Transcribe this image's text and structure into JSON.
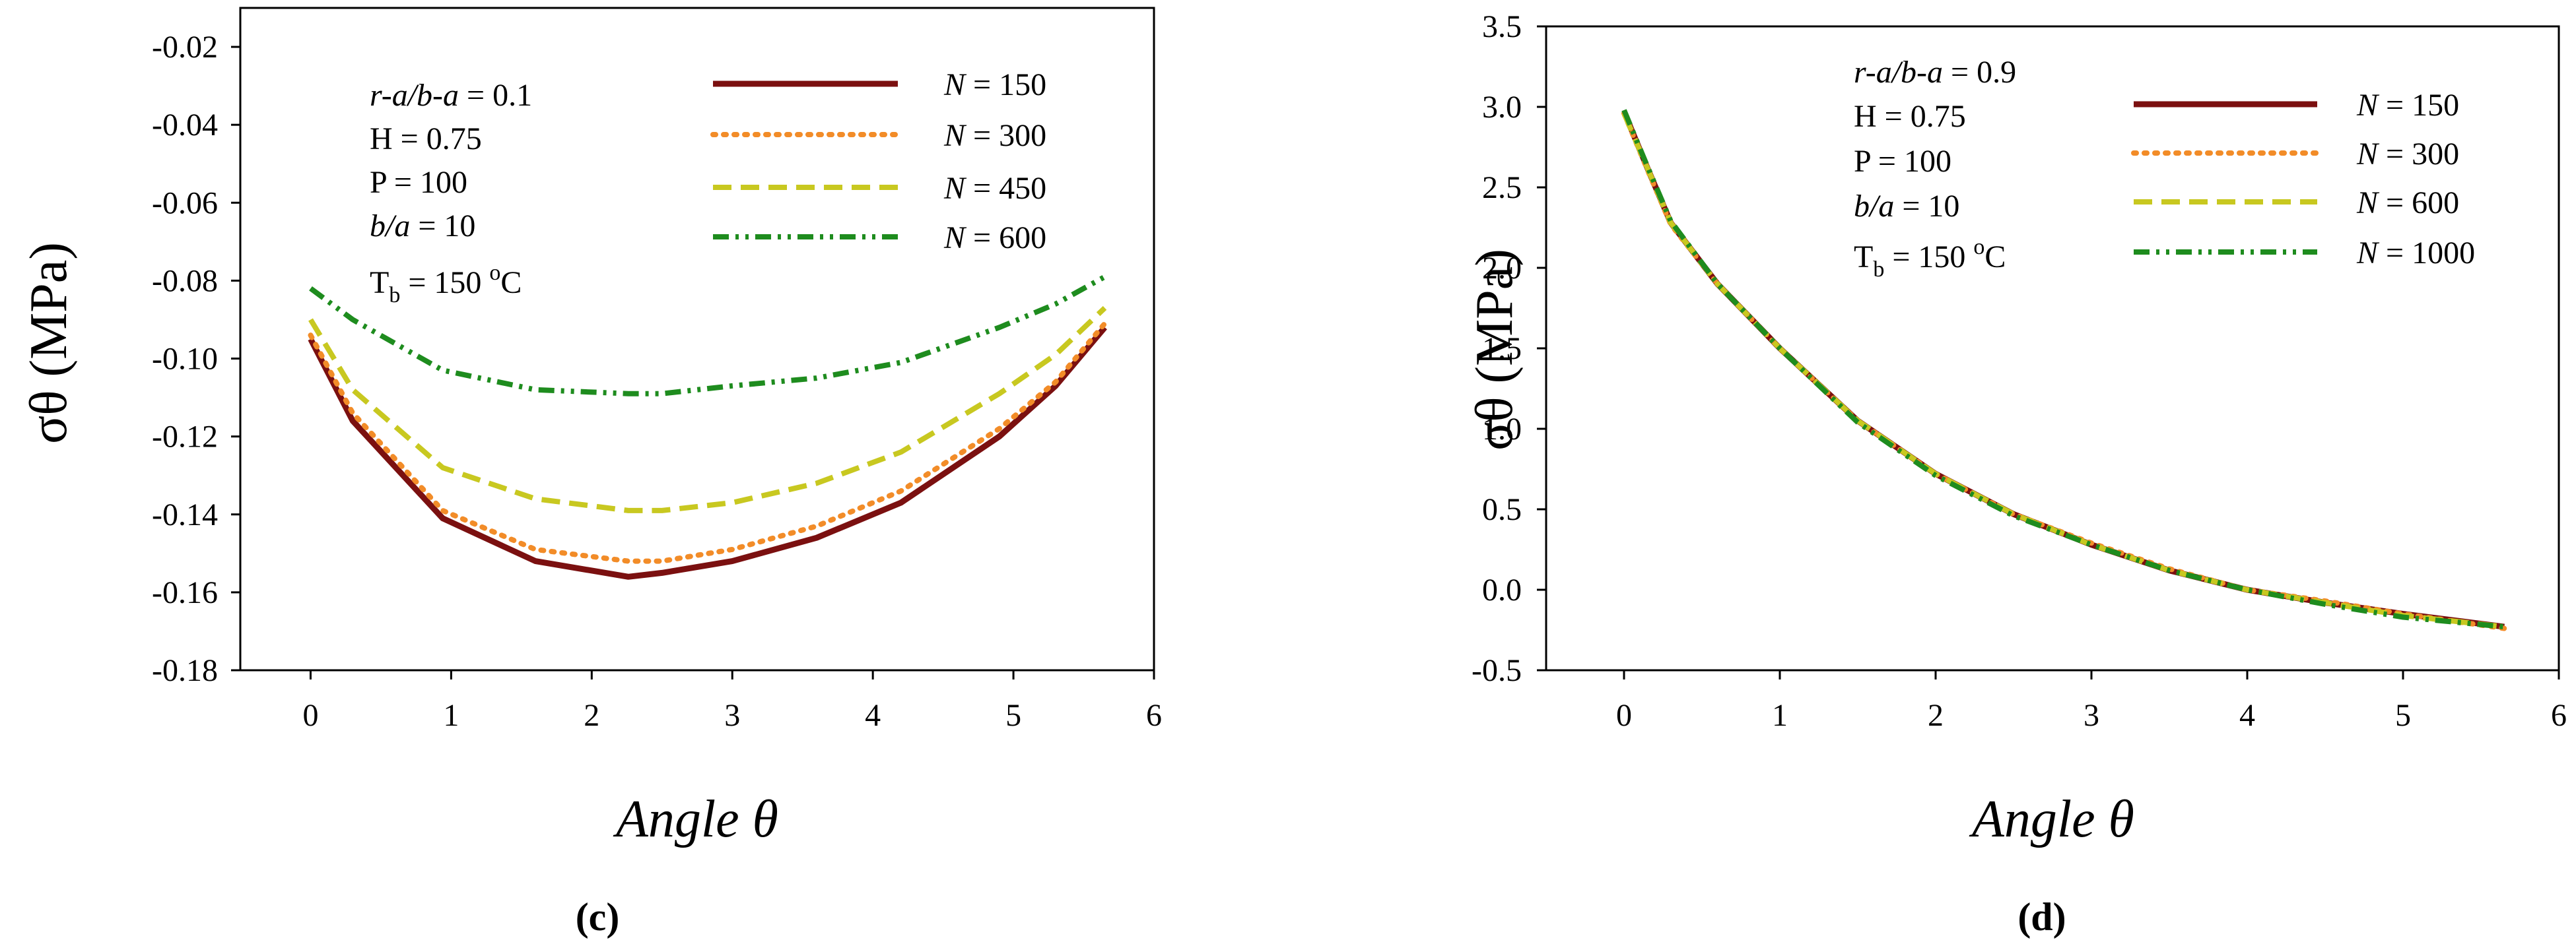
{
  "chart_data": [
    {
      "panel": "c",
      "type": "line",
      "caption": "(c)",
      "xlabel": "Angle θ",
      "ylabel": "σθ (MPa)",
      "xlim": [
        -0.5,
        6
      ],
      "ylim": [
        -0.18,
        -0.01
      ],
      "x_ticks": [
        "0",
        "1",
        "2",
        "3",
        "4",
        "5",
        "6"
      ],
      "x_tick_values": [
        0,
        1,
        2,
        3,
        4,
        5,
        6
      ],
      "y_ticks": [
        "-0.02",
        "-0.04",
        "-0.06",
        "-0.08",
        "-0.10",
        "-0.12",
        "-0.14",
        "-0.16",
        "-0.18"
      ],
      "y_tick_values": [
        -0.02,
        -0.04,
        -0.06,
        -0.08,
        -0.1,
        -0.12,
        -0.14,
        -0.16,
        -0.18
      ],
      "annotations": {
        "ratio_label": "r-a/b-a",
        "ratio_value": " = 0.1",
        "h": "H = 0.75",
        "p": "P = 100",
        "ba_label": "b/a",
        "ba_value": " = 10",
        "tb_main": "T",
        "tb_sub": "b",
        "tb_value": " = 150 ",
        "tb_degree": "o",
        "tb_unit": "C"
      },
      "series": [
        {
          "name": "N = 150",
          "n_label": "N",
          "n_value": " = 150",
          "color": "#7B1010",
          "style": "solid",
          "x": [
            0,
            0.3,
            0.94,
            1.6,
            2.26,
            2.5,
            3.0,
            3.6,
            4.2,
            4.9,
            5.3,
            5.65
          ],
          "values": [
            -0.095,
            -0.116,
            -0.141,
            -0.152,
            -0.156,
            -0.155,
            -0.152,
            -0.146,
            -0.137,
            -0.12,
            -0.107,
            -0.092
          ]
        },
        {
          "name": "N = 300",
          "n_label": "N",
          "n_value": " = 300",
          "color": "#F28C28",
          "style": "dotted",
          "x": [
            0,
            0.3,
            0.94,
            1.6,
            2.26,
            2.5,
            3.0,
            3.6,
            4.2,
            4.9,
            5.3,
            5.65
          ],
          "values": [
            -0.094,
            -0.114,
            -0.139,
            -0.149,
            -0.152,
            -0.152,
            -0.149,
            -0.143,
            -0.134,
            -0.118,
            -0.106,
            -0.091
          ]
        },
        {
          "name": "N = 450",
          "n_label": "N",
          "n_value": " = 450",
          "color": "#C8C820",
          "style": "dashed",
          "x": [
            0,
            0.3,
            0.94,
            1.6,
            2.26,
            2.5,
            3.0,
            3.6,
            4.2,
            4.9,
            5.3,
            5.65
          ],
          "values": [
            -0.09,
            -0.108,
            -0.128,
            -0.136,
            -0.139,
            -0.139,
            -0.137,
            -0.132,
            -0.124,
            -0.109,
            -0.099,
            -0.087
          ]
        },
        {
          "name": "N = 600",
          "n_label": "N",
          "n_value": " = 600",
          "color": "#1E8C1E",
          "style": "dashdotdot",
          "x": [
            0,
            0.3,
            0.94,
            1.6,
            2.26,
            2.5,
            3.0,
            3.6,
            4.2,
            4.9,
            5.3,
            5.65
          ],
          "values": [
            -0.082,
            -0.09,
            -0.103,
            -0.108,
            -0.109,
            -0.109,
            -0.107,
            -0.105,
            -0.101,
            -0.092,
            -0.086,
            -0.079
          ]
        }
      ]
    },
    {
      "panel": "d",
      "type": "line",
      "caption": "(d)",
      "xlabel": "Angle θ",
      "ylabel": "σθ (MPa)",
      "xlim": [
        -0.5,
        6
      ],
      "ylim": [
        -0.5,
        3.5
      ],
      "x_ticks": [
        "0",
        "1",
        "2",
        "3",
        "4",
        "5",
        "6"
      ],
      "x_tick_values": [
        0,
        1,
        2,
        3,
        4,
        5,
        6
      ],
      "y_ticks": [
        "3.5",
        "3.0",
        "2.5",
        "2.0",
        "1.5",
        "1.0",
        "0.5",
        "0.0",
        "-0.5"
      ],
      "y_tick_values": [
        3.5,
        3.0,
        2.5,
        2.0,
        1.5,
        1.0,
        0.5,
        0.0,
        -0.5
      ],
      "annotations": {
        "ratio_label": "r-a/b-a",
        "ratio_value": " = 0.9",
        "h": "H = 0.75",
        "p": "P = 100",
        "ba_label": "b/a",
        "ba_value": " = 10",
        "tb_main": "T",
        "tb_sub": "b",
        "tb_value": " = 150 ",
        "tb_degree": "o",
        "tb_unit": "C"
      },
      "series": [
        {
          "name": "N = 150",
          "n_label": "N",
          "n_value": " = 150",
          "color": "#7B1010",
          "style": "solid",
          "x": [
            0,
            0.15,
            0.3,
            0.6,
            1.0,
            1.5,
            2.0,
            2.5,
            3.0,
            3.5,
            4.0,
            4.5,
            5.0,
            5.65
          ],
          "values": [
            2.97,
            2.62,
            2.28,
            1.9,
            1.5,
            1.05,
            0.72,
            0.47,
            0.28,
            0.12,
            0.0,
            -0.08,
            -0.15,
            -0.23
          ]
        },
        {
          "name": "N = 300",
          "n_label": "N",
          "n_value": " = 300",
          "color": "#F28C28",
          "style": "dotted",
          "x": [
            0,
            0.15,
            0.3,
            0.6,
            1.0,
            1.5,
            2.0,
            2.5,
            3.0,
            3.5,
            4.0,
            4.5,
            5.0,
            5.65
          ],
          "values": [
            2.96,
            2.61,
            2.27,
            1.9,
            1.5,
            1.05,
            0.72,
            0.47,
            0.29,
            0.13,
            0.0,
            -0.07,
            -0.15,
            -0.24
          ]
        },
        {
          "name": "N = 600",
          "n_label": "N",
          "n_value": " = 600",
          "color": "#C8C820",
          "style": "dashed",
          "x": [
            0,
            0.15,
            0.3,
            0.6,
            1.0,
            1.5,
            2.0,
            2.5,
            3.0,
            3.5,
            4.0,
            4.5,
            5.0,
            5.65
          ],
          "values": [
            2.96,
            2.62,
            2.28,
            1.9,
            1.5,
            1.05,
            0.72,
            0.47,
            0.28,
            0.12,
            0.0,
            -0.08,
            -0.16,
            -0.23
          ]
        },
        {
          "name": "N = 1000",
          "n_label": "N",
          "n_value": " = 1000",
          "color": "#1E8C1E",
          "style": "dashdotdot",
          "x": [
            0,
            0.15,
            0.3,
            0.6,
            1.0,
            1.5,
            2.0,
            2.5,
            3.0,
            3.5,
            4.0,
            4.5,
            5.0,
            5.65
          ],
          "values": [
            2.98,
            2.63,
            2.29,
            1.9,
            1.5,
            1.04,
            0.71,
            0.46,
            0.28,
            0.12,
            0.0,
            -0.09,
            -0.17,
            -0.23
          ]
        }
      ]
    }
  ]
}
